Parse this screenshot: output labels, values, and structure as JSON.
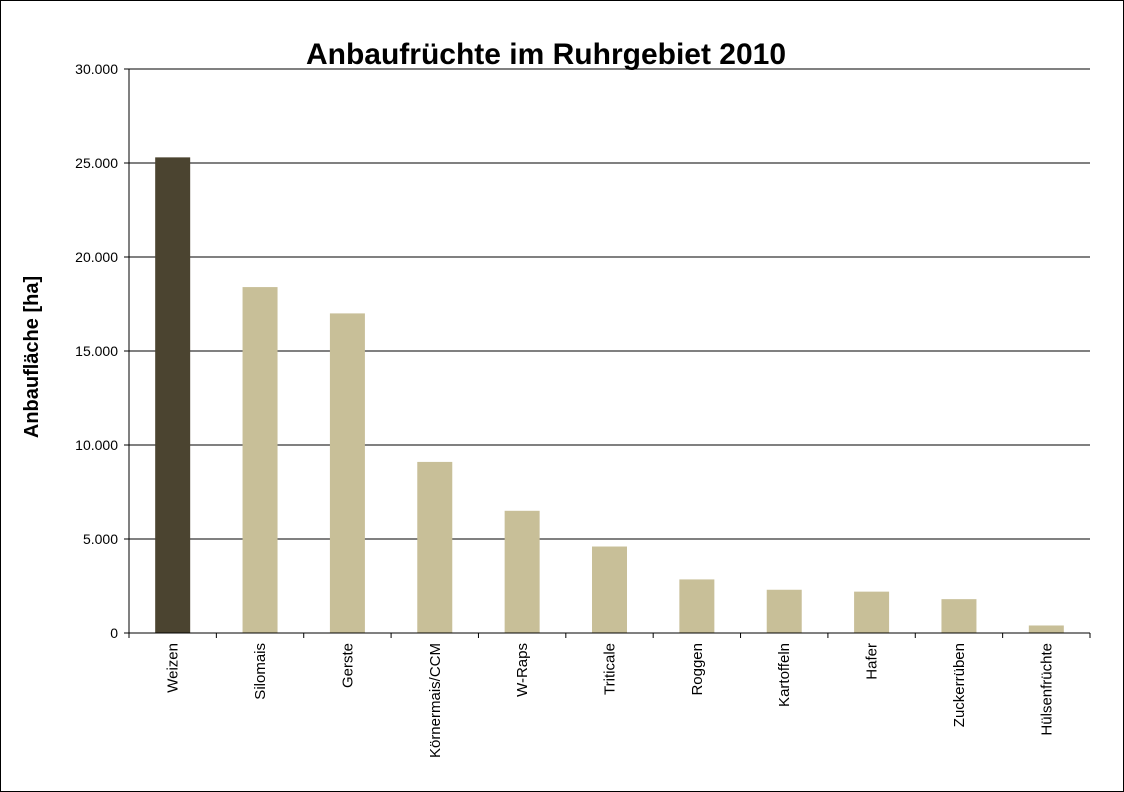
{
  "chart_data": {
    "type": "bar",
    "title": "Anbaufrüchte  im Ruhrgebiet 2010",
    "xlabel": "",
    "ylabel": "Anbaufläche [ha]",
    "categories": [
      "Weizen",
      "Silomais",
      "Gerste",
      "Körnermais/CCM",
      "W-Raps",
      "Triticale",
      "Roggen",
      "Kartoffeln",
      "Hafer",
      "Zuckerrüben",
      "Hülsenfrüchte"
    ],
    "values": [
      25300,
      18400,
      17000,
      9100,
      6500,
      4600,
      2850,
      2300,
      2200,
      1800,
      400
    ],
    "ylim": [
      0,
      30000
    ],
    "yticks": [
      0,
      5000,
      10000,
      15000,
      20000,
      25000,
      30000
    ],
    "ytick_labels": [
      "0",
      "5.000",
      "10.000",
      "15.000",
      "20.000",
      "25.000",
      "30.000"
    ],
    "grid": true,
    "legend": "none",
    "colors": {
      "highlight": "#4b4430",
      "bar": "#c8bf98",
      "grid": "#000000"
    }
  }
}
